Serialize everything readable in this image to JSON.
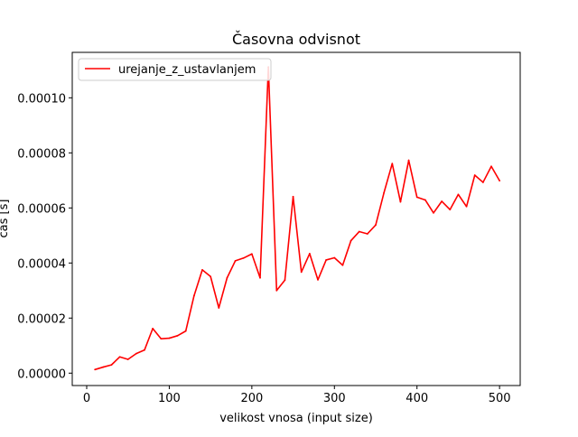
{
  "chart_data": {
    "type": "line",
    "title": "Časovna odvisnot",
    "xlabel": "velikost vnosa (input size)",
    "ylabel": "čas [s]",
    "xlim": [
      -17.5,
      525
    ],
    "ylim": [
      -4.5e-06,
      0.0001165
    ],
    "xticks": [
      0,
      100,
      200,
      300,
      400,
      500
    ],
    "xtick_labels": [
      "0",
      "100",
      "200",
      "300",
      "400",
      "500"
    ],
    "yticks": [
      0,
      2e-05,
      4e-05,
      6e-05,
      8e-05,
      0.0001
    ],
    "ytick_labels": [
      "0.00000",
      "0.00002",
      "0.00004",
      "0.00006",
      "0.00008",
      "0.00010"
    ],
    "grid": false,
    "legend_position": "top-left",
    "series": [
      {
        "name": "urejanje_z_ustavlanjem",
        "color": "#ff0000",
        "x": [
          10,
          20,
          30,
          40,
          50,
          60,
          70,
          80,
          90,
          100,
          110,
          120,
          130,
          140,
          150,
          160,
          170,
          180,
          190,
          200,
          210,
          220,
          230,
          240,
          250,
          260,
          270,
          280,
          290,
          300,
          310,
          320,
          330,
          340,
          350,
          360,
          370,
          380,
          390,
          400,
          410,
          420,
          430,
          440,
          450,
          460,
          470,
          480,
          490,
          500
        ],
        "y": [
          1.3e-06,
          2.2e-06,
          3e-06,
          5.9e-06,
          5e-06,
          7.1e-06,
          8.4e-06,
          1.62e-05,
          1.25e-05,
          1.27e-05,
          1.36e-05,
          1.53e-05,
          2.81e-05,
          3.75e-05,
          3.51e-05,
          2.37e-05,
          3.46e-05,
          4.08e-05,
          4.18e-05,
          4.33e-05,
          3.46e-05,
          0.0001112,
          3e-05,
          3.38e-05,
          6.41e-05,
          3.67e-05,
          4.34e-05,
          3.39e-05,
          4.11e-05,
          4.19e-05,
          3.92e-05,
          4.81e-05,
          5.14e-05,
          5.06e-05,
          5.38e-05,
          6.55e-05,
          7.61e-05,
          6.22e-05,
          7.73e-05,
          6.39e-05,
          6.29e-05,
          5.82e-05,
          6.24e-05,
          5.94e-05,
          6.49e-05,
          6.05e-05,
          7.19e-05,
          6.93e-05,
          7.51e-05,
          6.99e-05
        ]
      }
    ]
  }
}
